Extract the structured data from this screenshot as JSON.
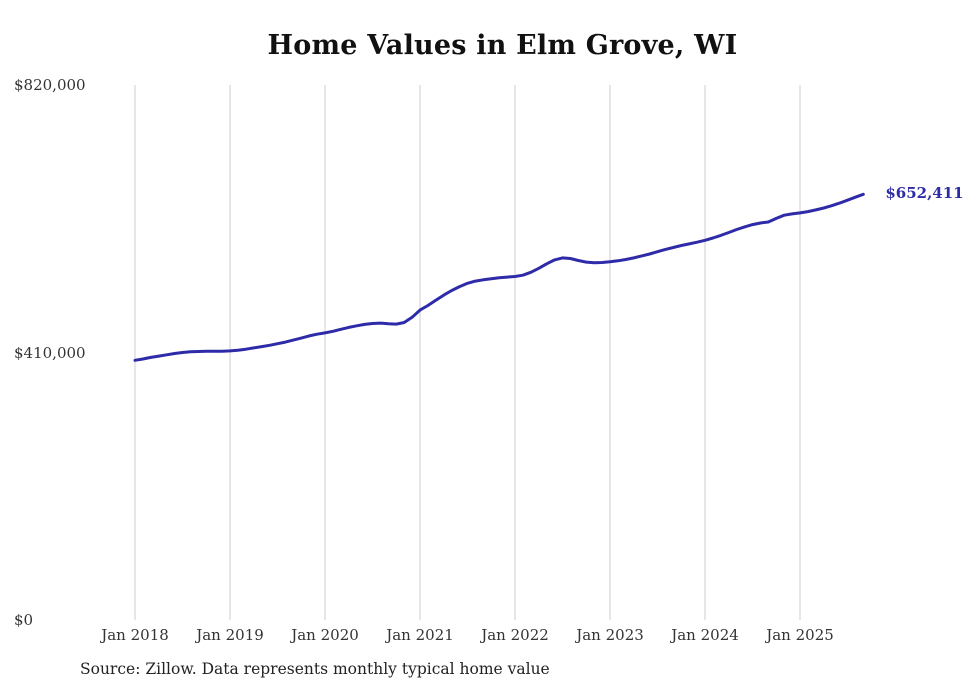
{
  "chart_data": {
    "type": "line",
    "title": "Home Values in Elm Grove, WI",
    "series_name": "Monthly typical home value",
    "start_month": "2018-01",
    "end_month": "2025-09",
    "x_tick_labels": [
      "Jan 2018",
      "Jan 2019",
      "Jan 2020",
      "Jan 2021",
      "Jan 2022",
      "Jan 2023",
      "Jan 2024",
      "Jan 2025"
    ],
    "y_ticks": [
      {
        "label": "$0",
        "value": 0
      },
      {
        "label": "$410,000",
        "value": 410000
      },
      {
        "label": "$820,000",
        "value": 820000
      }
    ],
    "ylim": [
      0,
      820000
    ],
    "grid": "vertical-only",
    "legend": "none",
    "line_color": "#2e2ba9",
    "grid_color": "#cccccc",
    "end_label": "$652,411",
    "end_value": 652411,
    "values": [
      398000,
      400000,
      402500,
      404500,
      406500,
      408500,
      410000,
      411000,
      411500,
      412000,
      412000,
      412000,
      412500,
      413500,
      415000,
      417000,
      419000,
      421000,
      423500,
      426000,
      429000,
      432000,
      435500,
      438000,
      440000,
      442500,
      445500,
      448500,
      451000,
      453000,
      454500,
      455000,
      454000,
      453500,
      456000,
      464000,
      475000,
      482000,
      490000,
      498000,
      505000,
      511000,
      516000,
      519500,
      521500,
      523000,
      524500,
      525500,
      526500,
      528500,
      533000,
      539000,
      546000,
      552000,
      555000,
      554000,
      551000,
      548500,
      547500,
      548000,
      549000,
      550500,
      552500,
      555000,
      558000,
      561000,
      564500,
      568000,
      571000,
      574000,
      576500,
      579000,
      582000,
      585500,
      589500,
      594000,
      598500,
      602500,
      606000,
      608500,
      610000,
      615500,
      620500,
      622500,
      624000,
      626000,
      628500,
      631500,
      635000,
      639000,
      643500,
      648000,
      652411
    ],
    "source": "Source: Zillow. Data represents monthly typical home value"
  }
}
